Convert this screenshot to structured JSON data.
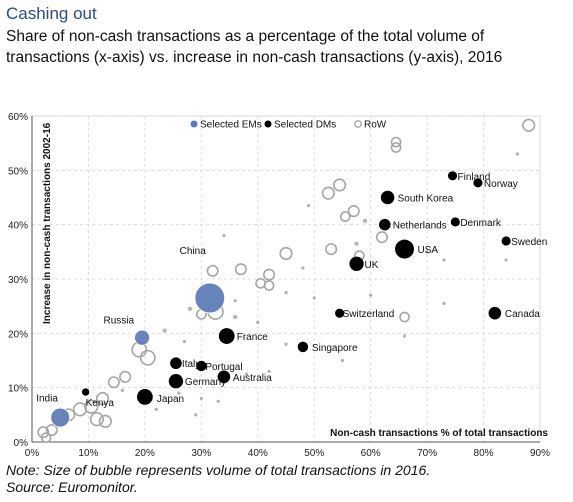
{
  "title": "Cashing out",
  "subtitle": "Share of non-cash transactions as a percentage of the total volume of transactions (x-axis) vs. increase in non-cash transactions (y-axis), 2016",
  "note": "Note: Size of bubble represents volume of total transactions in 2016.",
  "source": "Source: Euromonitor.",
  "colors": {
    "em": "#5b79b5",
    "dm": "#000000",
    "row_outline": "#a6a6a6",
    "row_dot": "#b3b3b3",
    "title": "#2b4d86"
  },
  "chart_data": {
    "type": "scatter",
    "xlabel": "Non-cash transactions % of total transactions",
    "ylabel": "Increase in non-cash transactions 2002-16",
    "xlim": [
      0,
      90
    ],
    "ylim": [
      0,
      60
    ],
    "xticks": [
      "0%",
      "10%",
      "20%",
      "30%",
      "40%",
      "50%",
      "60%",
      "70%",
      "80%",
      "90%"
    ],
    "yticks": [
      "0%",
      "10%",
      "20%",
      "30%",
      "40%",
      "50%",
      "60%"
    ],
    "grid": true,
    "legend": {
      "placement": "top",
      "entries": [
        "Selected EMs",
        "Selected DMs",
        "RoW"
      ]
    },
    "series": [
      {
        "name": "Selected EMs",
        "points": [
          {
            "label": "China",
            "x": 31.5,
            "y": 26.5,
            "size": 40
          },
          {
            "label": "Russia",
            "x": 19.5,
            "y": 19.2,
            "size": 8
          },
          {
            "label": "India",
            "x": 5,
            "y": 4.5,
            "size": 14
          }
        ]
      },
      {
        "name": "Selected DMs",
        "points": [
          {
            "label": "Finland",
            "x": 74.5,
            "y": 49,
            "size": 2
          },
          {
            "label": "Norway",
            "x": 79,
            "y": 47.7,
            "size": 2
          },
          {
            "label": "South Korea",
            "x": 63,
            "y": 45,
            "size": 6
          },
          {
            "label": "Netherlands",
            "x": 62.5,
            "y": 40,
            "size": 4
          },
          {
            "label": "Denmark",
            "x": 75,
            "y": 40.5,
            "size": 2
          },
          {
            "label": "Sweden",
            "x": 84,
            "y": 37,
            "size": 2
          },
          {
            "label": "USA",
            "x": 66,
            "y": 35.5,
            "size": 14
          },
          {
            "label": "UK",
            "x": 57.5,
            "y": 32.8,
            "size": 7
          },
          {
            "label": "Switzerland",
            "x": 54.5,
            "y": 23.7,
            "size": 2
          },
          {
            "label": "Canada",
            "x": 82,
            "y": 23.7,
            "size": 5
          },
          {
            "label": "France",
            "x": 34.5,
            "y": 19.5,
            "size": 9
          },
          {
            "label": "Singapore",
            "x": 48,
            "y": 17.5,
            "size": 3
          },
          {
            "label": "Italy",
            "x": 25.5,
            "y": 14.5,
            "size": 4
          },
          {
            "label": "Portugal",
            "x": 30,
            "y": 14,
            "size": 3
          },
          {
            "label": "Australia",
            "x": 34,
            "y": 12,
            "size": 5
          },
          {
            "label": "Germany",
            "x": 25.5,
            "y": 11.2,
            "size": 7
          },
          {
            "label": "Japan",
            "x": 20,
            "y": 8.3,
            "size": 9
          },
          {
            "label": "Kenya",
            "x": 9.5,
            "y": 9.2,
            "size": 1
          }
        ]
      },
      {
        "name": "RoW",
        "points": [
          {
            "x": 88,
            "y": 58.3,
            "size": 4,
            "style": "ring"
          },
          {
            "x": 64.5,
            "y": 55.2,
            "size": 2,
            "style": "ring"
          },
          {
            "x": 64.5,
            "y": 54.2,
            "size": 2,
            "style": "ring"
          },
          {
            "x": 54.5,
            "y": 47.3,
            "size": 4,
            "style": "ring"
          },
          {
            "x": 52.5,
            "y": 45.8,
            "size": 4,
            "style": "ring"
          },
          {
            "x": 49,
            "y": 43.5,
            "size": 1,
            "style": "dot"
          },
          {
            "x": 57,
            "y": 42.5,
            "size": 3,
            "style": "ring"
          },
          {
            "x": 59,
            "y": 40.7,
            "size": 2,
            "style": "dot"
          },
          {
            "x": 55.5,
            "y": 41.5,
            "size": 2,
            "style": "ring"
          },
          {
            "x": 62,
            "y": 37.7,
            "size": 3,
            "style": "ring"
          },
          {
            "x": 57.5,
            "y": 36.5,
            "size": 2,
            "style": "dot"
          },
          {
            "x": 53,
            "y": 35.5,
            "size": 3,
            "style": "ring"
          },
          {
            "x": 58,
            "y": 34.3,
            "size": 2,
            "style": "ring"
          },
          {
            "x": 42,
            "y": 30.8,
            "size": 3,
            "style": "ring"
          },
          {
            "x": 40.5,
            "y": 29.2,
            "size": 2,
            "style": "ring"
          },
          {
            "x": 42,
            "y": 28.8,
            "size": 2,
            "style": "ring"
          },
          {
            "x": 45,
            "y": 34.7,
            "size": 4,
            "style": "ring"
          },
          {
            "x": 37,
            "y": 31.8,
            "size": 3,
            "style": "ring"
          },
          {
            "x": 32,
            "y": 31.5,
            "size": 3,
            "style": "ring"
          },
          {
            "x": 30,
            "y": 23.5,
            "size": 2,
            "style": "ring"
          },
          {
            "x": 32.5,
            "y": 24,
            "size": 8,
            "style": "ring"
          },
          {
            "x": 28,
            "y": 24.5,
            "size": 2,
            "style": "dot"
          },
          {
            "x": 33.5,
            "y": 25,
            "size": 2,
            "style": "dot"
          },
          {
            "x": 36,
            "y": 23,
            "size": 2,
            "style": "dot"
          },
          {
            "x": 23.5,
            "y": 20.5,
            "size": 2,
            "style": "dot"
          },
          {
            "x": 20.5,
            "y": 15.5,
            "size": 7,
            "style": "ring"
          },
          {
            "x": 19,
            "y": 17,
            "size": 7,
            "style": "ring"
          },
          {
            "x": 16.5,
            "y": 12,
            "size": 3,
            "style": "ring"
          },
          {
            "x": 14.5,
            "y": 11,
            "size": 3,
            "style": "ring"
          },
          {
            "x": 12.5,
            "y": 8,
            "size": 4,
            "style": "ring"
          },
          {
            "x": 10.5,
            "y": 6.5,
            "size": 5,
            "style": "ring"
          },
          {
            "x": 8.5,
            "y": 6,
            "size": 5,
            "style": "ring"
          },
          {
            "x": 6.5,
            "y": 5,
            "size": 4,
            "style": "ring"
          },
          {
            "x": 11.5,
            "y": 4.2,
            "size": 5,
            "style": "ring"
          },
          {
            "x": 13,
            "y": 3.8,
            "size": 4,
            "style": "ring"
          },
          {
            "x": 3.5,
            "y": 2.2,
            "size": 3,
            "style": "ring"
          },
          {
            "x": 2,
            "y": 1.8,
            "size": 3,
            "style": "ring"
          },
          {
            "x": 2.5,
            "y": 0.8,
            "size": 2,
            "style": "ring"
          },
          {
            "x": 16,
            "y": 9.5,
            "size": 1,
            "style": "dot"
          },
          {
            "x": 26,
            "y": 9,
            "size": 1,
            "style": "dot"
          },
          {
            "x": 30,
            "y": 8,
            "size": 1,
            "style": "dot"
          },
          {
            "x": 38,
            "y": 12.5,
            "size": 1,
            "style": "dot"
          },
          {
            "x": 42,
            "y": 13,
            "size": 1,
            "style": "dot"
          },
          {
            "x": 50,
            "y": 26.5,
            "size": 1,
            "style": "dot"
          },
          {
            "x": 45,
            "y": 27.5,
            "size": 1,
            "style": "dot"
          },
          {
            "x": 60,
            "y": 27,
            "size": 1,
            "style": "dot"
          },
          {
            "x": 66,
            "y": 23,
            "size": 2,
            "style": "ring"
          },
          {
            "x": 66,
            "y": 19.5,
            "size": 1,
            "style": "dot"
          },
          {
            "x": 73,
            "y": 25.5,
            "size": 1,
            "style": "dot"
          },
          {
            "x": 86,
            "y": 53,
            "size": 1,
            "style": "dot"
          },
          {
            "x": 48,
            "y": 32,
            "size": 1,
            "style": "dot"
          },
          {
            "x": 36,
            "y": 26,
            "size": 1,
            "style": "dot"
          },
          {
            "x": 40,
            "y": 22,
            "size": 1,
            "style": "dot"
          },
          {
            "x": 70,
            "y": 35,
            "size": 1,
            "style": "dot"
          },
          {
            "x": 73,
            "y": 33.5,
            "size": 1,
            "style": "dot"
          },
          {
            "x": 84,
            "y": 33.5,
            "size": 1,
            "style": "dot"
          },
          {
            "x": 55,
            "y": 15,
            "size": 1,
            "style": "dot"
          },
          {
            "x": 22,
            "y": 6,
            "size": 1,
            "style": "dot"
          },
          {
            "x": 29,
            "y": 5,
            "size": 1,
            "style": "dot"
          },
          {
            "x": 33,
            "y": 7.5,
            "size": 1,
            "style": "dot"
          },
          {
            "x": 45,
            "y": 18,
            "size": 1,
            "style": "dot"
          },
          {
            "x": 27,
            "y": 18.5,
            "size": 1,
            "style": "dot"
          },
          {
            "x": 34,
            "y": 38,
            "size": 1,
            "style": "dot"
          }
        ]
      }
    ]
  }
}
